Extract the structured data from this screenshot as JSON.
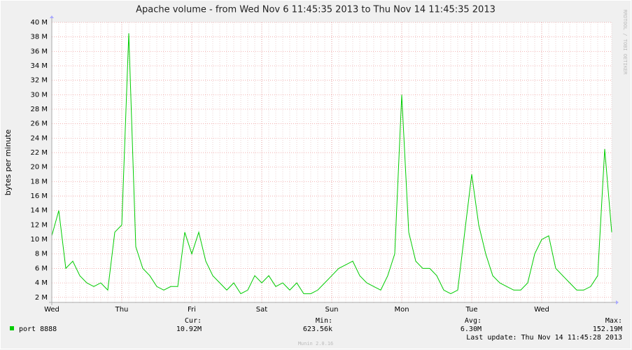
{
  "chart_data": {
    "type": "line",
    "title": "Apache volume - from Wed Nov  6 11:45:35 2013 to Thu Nov 14 11:45:35 2013",
    "y_label": "bytes per minute",
    "watermark": "RRDTOOL / TOBI OETIKER",
    "categories": [
      "Wed",
      null,
      null,
      null,
      null,
      null,
      null,
      null,
      null,
      null,
      "Thu",
      null,
      null,
      null,
      null,
      null,
      null,
      null,
      null,
      null,
      "Fri",
      null,
      null,
      null,
      null,
      null,
      null,
      null,
      null,
      null,
      "Sat",
      null,
      null,
      null,
      null,
      null,
      null,
      null,
      null,
      null,
      "Sun",
      null,
      null,
      null,
      null,
      null,
      null,
      null,
      null,
      null,
      "Mon",
      null,
      null,
      null,
      null,
      null,
      null,
      null,
      null,
      null,
      "Tue",
      null,
      null,
      null,
      null,
      null,
      null,
      null,
      null,
      null,
      "Wed",
      null,
      null,
      null,
      null,
      null,
      null,
      null,
      null,
      null,
      null
    ],
    "series": [
      {
        "name": "port 8888",
        "color": "#00cc00",
        "values": [
          10.5,
          14,
          6,
          7,
          5,
          4,
          3.5,
          4,
          3,
          11,
          12,
          38.5,
          9,
          6,
          5,
          3.5,
          3,
          3.5,
          3.5,
          11,
          8,
          11,
          7,
          5,
          4,
          3,
          4,
          2.5,
          3,
          5,
          4,
          5,
          3.5,
          4,
          3,
          4,
          2.5,
          2.5,
          3,
          4,
          5,
          6,
          6.5,
          7,
          5,
          4,
          3.5,
          3,
          5,
          8,
          30,
          11,
          7,
          6,
          6,
          5,
          3,
          2.5,
          3,
          11,
          19,
          12,
          8,
          5,
          4,
          3.5,
          3,
          3,
          4,
          8,
          10,
          10.5,
          6,
          5,
          4,
          3,
          3,
          3.5,
          5,
          22.5,
          11
        ]
      }
    ],
    "ylim": [
      1.3,
      40
    ],
    "yticks": [
      {
        "value": 2,
        "label": "2 M"
      },
      {
        "value": 4,
        "label": "4 M"
      },
      {
        "value": 6,
        "label": "6 M"
      },
      {
        "value": 8,
        "label": "8 M"
      },
      {
        "value": 10,
        "label": "10 M"
      },
      {
        "value": 12,
        "label": "12 M"
      },
      {
        "value": 14,
        "label": "14 M"
      },
      {
        "value": 16,
        "label": "16 M"
      },
      {
        "value": 18,
        "label": "18 M"
      },
      {
        "value": 20,
        "label": "20 M"
      },
      {
        "value": 22,
        "label": "22 M"
      },
      {
        "value": 24,
        "label": "24 M"
      },
      {
        "value": 26,
        "label": "26 M"
      },
      {
        "value": 28,
        "label": "28 M"
      },
      {
        "value": 30,
        "label": "30 M"
      },
      {
        "value": 32,
        "label": "32 M"
      },
      {
        "value": 34,
        "label": "34 M"
      },
      {
        "value": 36,
        "label": "36 M"
      },
      {
        "value": 38,
        "label": "38 M"
      },
      {
        "value": 40,
        "label": "40 M"
      }
    ],
    "grid": true,
    "legend_stats": [
      {
        "label": "Cur:",
        "value": "10.92M"
      },
      {
        "label": "Min:",
        "value": "623.56k"
      },
      {
        "label": "Avg:",
        "value": "6.30M"
      },
      {
        "label": "Max:",
        "value": "152.19M"
      }
    ],
    "last_update": "Last update: Thu Nov 14 11:45:28 2013",
    "footer": "Munin 2.0.16"
  }
}
